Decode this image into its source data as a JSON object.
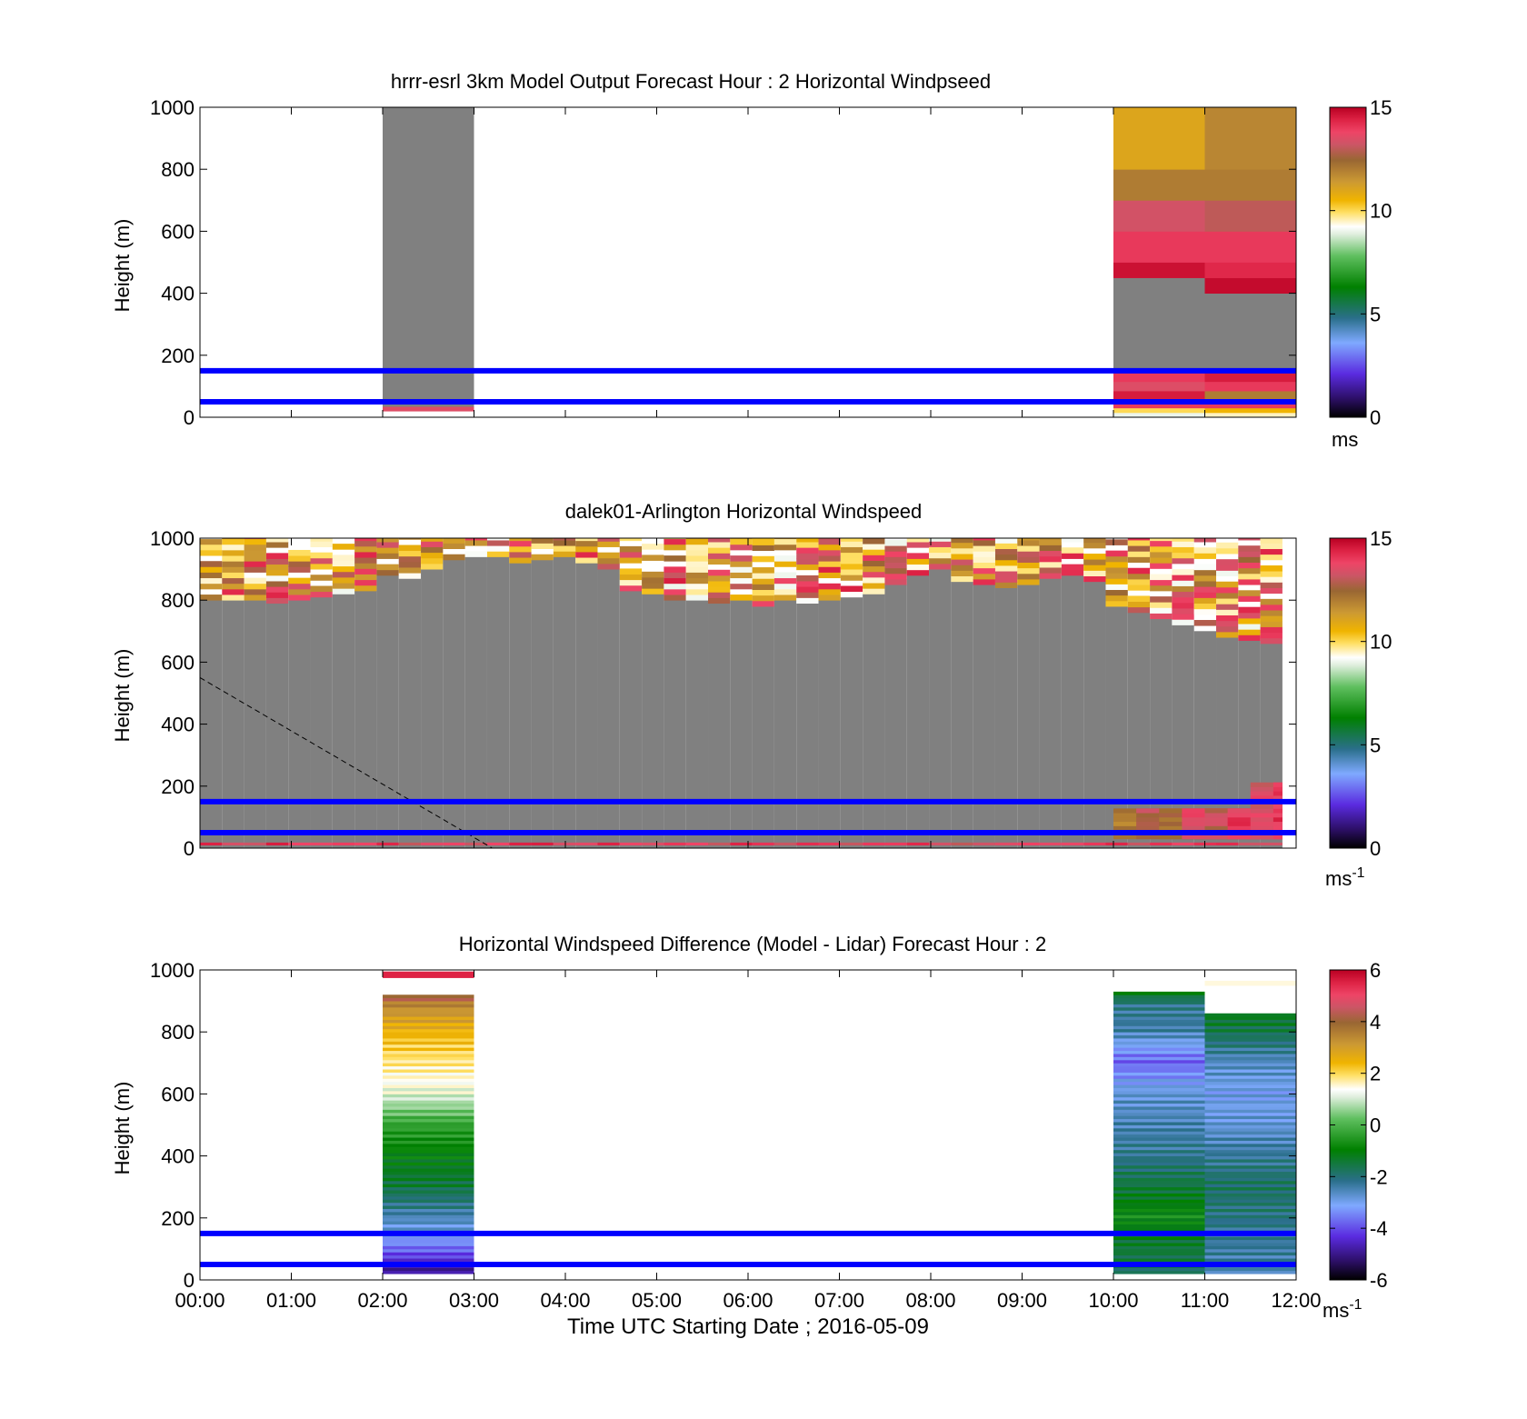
{
  "chart_data": [
    {
      "type": "heatmap",
      "title": "hrrr-esrl 3km Model Output   Forecast Hour : 2 Horizontal Windpseed",
      "ylabel": "Height (m)",
      "xlim": [
        0,
        12
      ],
      "ylim": [
        0,
        1000
      ],
      "yticks": [
        "0",
        "200",
        "400",
        "600",
        "800",
        "1000"
      ],
      "colorbar": {
        "min": 0,
        "max": 15,
        "ticks": [
          "0",
          "5",
          "10",
          "15"
        ],
        "unit": "ms",
        "unit_sup": ""
      },
      "reference_lines_m": [
        50,
        150
      ],
      "columns": [
        {
          "t0": 2,
          "t1": 3,
          "layers": [
            [
              20,
              35,
              13.5
            ],
            [
              35,
              1000,
              null
            ]
          ]
        },
        {
          "t0": 10,
          "t1": 11,
          "layers": [
            [
              0,
              15,
              9.0
            ],
            [
              15,
              30,
              10.0
            ],
            [
              30,
              60,
              14.0
            ],
            [
              60,
              85,
              14.5
            ],
            [
              85,
              115,
              13.5
            ],
            [
              115,
              150,
              14.0
            ],
            [
              150,
              450,
              null
            ],
            [
              450,
              500,
              14.7
            ],
            [
              500,
              600,
              14.0
            ],
            [
              600,
              700,
              13.3
            ],
            [
              700,
              800,
              12.0
            ],
            [
              800,
              1000,
              11.0
            ]
          ]
        },
        {
          "t0": 11,
          "t1": 12,
          "layers": [
            [
              0,
              15,
              9.5
            ],
            [
              15,
              30,
              10.5
            ],
            [
              30,
              60,
              14.0
            ],
            [
              60,
              85,
              12.0
            ],
            [
              85,
              115,
              14.0
            ],
            [
              115,
              150,
              14.5
            ],
            [
              150,
              400,
              null
            ],
            [
              400,
              450,
              14.8
            ],
            [
              450,
              500,
              14.3
            ],
            [
              500,
              600,
              14.0
            ],
            [
              600,
              700,
              13.0
            ],
            [
              700,
              800,
              12.0
            ],
            [
              800,
              1000,
              11.8
            ]
          ]
        }
      ]
    },
    {
      "type": "heatmap",
      "title": "dalek01-Arlington  Horizontal Windspeed",
      "ylabel": "Height (m)",
      "xlim": [
        0,
        12
      ],
      "ylim": [
        0,
        1000
      ],
      "yticks": [
        "0",
        "200",
        "400",
        "600",
        "800",
        "1000"
      ],
      "colorbar": {
        "min": 0,
        "max": 15,
        "ticks": [
          "0",
          "5",
          "10",
          "15"
        ],
        "unit": "ms",
        "unit_sup": "-1"
      },
      "reference_lines_m": [
        50,
        150
      ],
      "dashed_line": [
        [
          0,
          550
        ],
        [
          3.2,
          0
        ]
      ],
      "time_end": 11.85,
      "top_of_gray_m": [
        800,
        800,
        800,
        790,
        800,
        810,
        820,
        830,
        880,
        870,
        900,
        930,
        940,
        940,
        920,
        930,
        940,
        920,
        900,
        830,
        820,
        800,
        800,
        790,
        800,
        780,
        800,
        790,
        800,
        810,
        820,
        850,
        880,
        900,
        860,
        850,
        840,
        850,
        870,
        880,
        860,
        780,
        760,
        740,
        720,
        700,
        680,
        670,
        660
      ],
      "low_level_wind": [
        [
          10,
          11.4,
          12.5
        ],
        [
          10.25,
          11.5,
          13.5
        ],
        [
          10.5,
          11.7,
          13.0
        ],
        [
          10.75,
          11.9,
          14.0
        ],
        [
          11.0,
          12.1,
          13.5
        ],
        [
          11.25,
          12.3,
          14.5
        ],
        [
          11.5,
          12.55,
          14.0
        ],
        [
          11.75,
          12.8,
          14.5
        ]
      ]
    },
    {
      "type": "heatmap",
      "title": "Horizontal Windspeed Difference (Model - Lidar) Forecast Hour : 2",
      "xlabel": "Time UTC  Starting Date ; 2016-05-09",
      "ylabel": "Height (m)",
      "xlim": [
        0,
        12
      ],
      "ylim": [
        0,
        1000
      ],
      "xticks": [
        "00:00",
        "01:00",
        "02:00",
        "03:00",
        "04:00",
        "05:00",
        "06:00",
        "07:00",
        "08:00",
        "09:00",
        "10:00",
        "11:00",
        "12:00"
      ],
      "yticks": [
        "0",
        "200",
        "400",
        "600",
        "800",
        "1000"
      ],
      "colorbar": {
        "min": -6,
        "max": 6,
        "ticks": [
          "-6",
          "-4",
          "-2",
          "0",
          "2",
          "4",
          "6"
        ],
        "unit": "ms",
        "unit_sup": "-1"
      },
      "reference_lines_m": [
        50,
        150
      ],
      "columns": [
        {
          "t0": 2,
          "t1": 3,
          "profile": [
            [
              20,
              -5.0
            ],
            [
              50,
              -4.5
            ],
            [
              80,
              -4.0
            ],
            [
              110,
              -3.5
            ],
            [
              150,
              -3.0
            ],
            [
              200,
              -2.5
            ],
            [
              250,
              -2.0
            ],
            [
              300,
              -1.5
            ],
            [
              400,
              -1.0
            ],
            [
              500,
              -0.3
            ],
            [
              550,
              0.5
            ],
            [
              600,
              1.2
            ],
            [
              700,
              1.8
            ],
            [
              800,
              2.5
            ],
            [
              880,
              3.4
            ],
            [
              920,
              4.5
            ]
          ],
          "top_bands": [
            [
              975,
              995,
              5.5
            ]
          ]
        },
        {
          "t0": 10,
          "t1": 11,
          "profile": [
            [
              20,
              -1.8
            ],
            [
              150,
              -1.2
            ],
            [
              200,
              -0.8
            ],
            [
              300,
              -1.5
            ],
            [
              400,
              -2.2
            ],
            [
              500,
              -2.5
            ],
            [
              600,
              -2.8
            ],
            [
              700,
              -3.8
            ],
            [
              800,
              -2.4
            ],
            [
              880,
              -2.2
            ],
            [
              930,
              -1.0
            ]
          ]
        },
        {
          "t0": 11,
          "t1": 12,
          "profile": [
            [
              20,
              -2.5
            ],
            [
              150,
              -2.2
            ],
            [
              300,
              -1.8
            ],
            [
              400,
              -2.3
            ],
            [
              500,
              -2.8
            ],
            [
              600,
              -3.0
            ],
            [
              700,
              -2.6
            ],
            [
              800,
              -1.6
            ],
            [
              860,
              -1.2
            ]
          ],
          "top_bands": [
            [
              950,
              965,
              1.5
            ]
          ]
        }
      ]
    }
  ]
}
